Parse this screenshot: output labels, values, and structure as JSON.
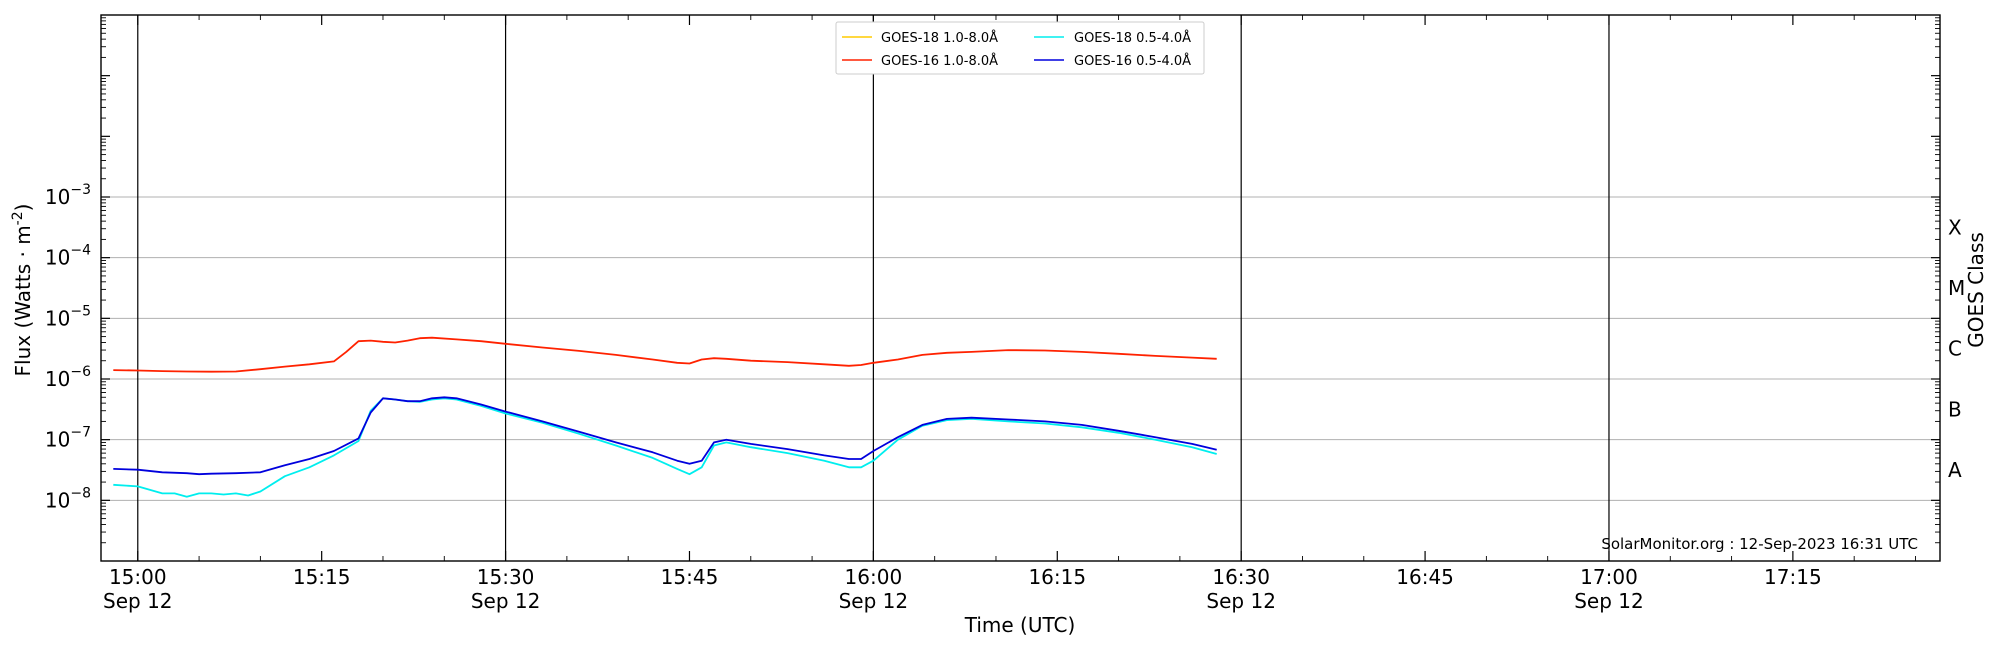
{
  "chart_data": {
    "type": "line",
    "xlabel": "Time (UTC)",
    "ylabel": "Flux (Watts · m",
    "ylabel_sup": "-2",
    "ylabel_close": ")",
    "right_axis_label": "GOES Class",
    "credit": "SolarMonitor.org : 12-Sep-2023 16:31 UTC",
    "x_range_minutes": [
      -3,
      147
    ],
    "y_log_range": [
      -9,
      0
    ],
    "y_scale": "log",
    "grid": "horizontal at decades",
    "legend_position": "top-center",
    "x_ticks": [
      {
        "t": 0,
        "label": "15:00",
        "date": "Sep 12",
        "major": true
      },
      {
        "t": 15,
        "label": "15:15",
        "date": "",
        "major": false
      },
      {
        "t": 30,
        "label": "15:30",
        "date": "Sep 12",
        "major": true
      },
      {
        "t": 45,
        "label": "15:45",
        "date": "",
        "major": false
      },
      {
        "t": 60,
        "label": "16:00",
        "date": "Sep 12",
        "major": true
      },
      {
        "t": 75,
        "label": "16:15",
        "date": "",
        "major": false
      },
      {
        "t": 90,
        "label": "16:30",
        "date": "Sep 12",
        "major": true
      },
      {
        "t": 105,
        "label": "16:45",
        "date": "",
        "major": false
      },
      {
        "t": 120,
        "label": "17:00",
        "date": "Sep 12",
        "major": true
      },
      {
        "t": 135,
        "label": "17:15",
        "date": "",
        "major": false
      }
    ],
    "y_ticks": [
      {
        "exp": -8,
        "base": "10",
        "sup": "−8"
      },
      {
        "exp": -7,
        "base": "10",
        "sup": "−7"
      },
      {
        "exp": -6,
        "base": "10",
        "sup": "−6"
      },
      {
        "exp": -5,
        "base": "10",
        "sup": "−5"
      },
      {
        "exp": -4,
        "base": "10",
        "sup": "−4"
      },
      {
        "exp": -3,
        "base": "10",
        "sup": "−3"
      }
    ],
    "goes_classes": [
      {
        "label": "A",
        "exp": -7.5
      },
      {
        "label": "B",
        "exp": -6.5
      },
      {
        "label": "C",
        "exp": -5.5
      },
      {
        "label": "M",
        "exp": -4.5
      },
      {
        "label": "X",
        "exp": -3.5
      }
    ],
    "x_unit": "minutes after 15:00 UTC",
    "series": [
      {
        "name": "GOES-18 1.0-8.0Å",
        "color": "#ffcc00",
        "points": []
      },
      {
        "name": "GOES-16 1.0-8.0Å",
        "color": "#ff2200",
        "points": [
          [
            -2,
            1.4e-06
          ],
          [
            0,
            1.38e-06
          ],
          [
            2,
            1.35e-06
          ],
          [
            4,
            1.33e-06
          ],
          [
            6,
            1.32e-06
          ],
          [
            8,
            1.33e-06
          ],
          [
            10,
            1.45e-06
          ],
          [
            12,
            1.6e-06
          ],
          [
            14,
            1.75e-06
          ],
          [
            16,
            1.95e-06
          ],
          [
            17,
            2.8e-06
          ],
          [
            18,
            4.2e-06
          ],
          [
            19,
            4.3e-06
          ],
          [
            20,
            4.1e-06
          ],
          [
            21,
            4e-06
          ],
          [
            22,
            4.3e-06
          ],
          [
            23,
            4.7e-06
          ],
          [
            24,
            4.8e-06
          ],
          [
            26,
            4.5e-06
          ],
          [
            28,
            4.2e-06
          ],
          [
            30,
            3.8e-06
          ],
          [
            33,
            3.3e-06
          ],
          [
            36,
            2.9e-06
          ],
          [
            39,
            2.5e-06
          ],
          [
            42,
            2.1e-06
          ],
          [
            44,
            1.85e-06
          ],
          [
            45,
            1.8e-06
          ],
          [
            46,
            2.1e-06
          ],
          [
            47,
            2.2e-06
          ],
          [
            48,
            2.15e-06
          ],
          [
            50,
            2e-06
          ],
          [
            53,
            1.9e-06
          ],
          [
            56,
            1.75e-06
          ],
          [
            58,
            1.65e-06
          ],
          [
            59,
            1.7e-06
          ],
          [
            60,
            1.85e-06
          ],
          [
            62,
            2.1e-06
          ],
          [
            64,
            2.5e-06
          ],
          [
            66,
            2.7e-06
          ],
          [
            68,
            2.8e-06
          ],
          [
            71,
            3e-06
          ],
          [
            74,
            2.95e-06
          ],
          [
            77,
            2.8e-06
          ],
          [
            80,
            2.6e-06
          ],
          [
            83,
            2.4e-06
          ],
          [
            86,
            2.25e-06
          ],
          [
            88,
            2.15e-06
          ]
        ]
      },
      {
        "name": "GOES-18 0.5-4.0Å",
        "color": "#00eeee",
        "points": [
          [
            -2,
            1.8e-08
          ],
          [
            0,
            1.7e-08
          ],
          [
            2,
            1.3e-08
          ],
          [
            3,
            1.3e-08
          ],
          [
            4,
            1.15e-08
          ],
          [
            5,
            1.3e-08
          ],
          [
            6,
            1.3e-08
          ],
          [
            7,
            1.25e-08
          ],
          [
            8,
            1.3e-08
          ],
          [
            9,
            1.2e-08
          ],
          [
            10,
            1.4e-08
          ],
          [
            12,
            2.5e-08
          ],
          [
            14,
            3.5e-08
          ],
          [
            16,
            5.5e-08
          ],
          [
            18,
            9.5e-08
          ],
          [
            19,
            3e-07
          ],
          [
            20,
            4.8e-07
          ],
          [
            21,
            4.6e-07
          ],
          [
            22,
            4.3e-07
          ],
          [
            23,
            4.2e-07
          ],
          [
            24,
            4.6e-07
          ],
          [
            25,
            4.8e-07
          ],
          [
            26,
            4.6e-07
          ],
          [
            28,
            3.6e-07
          ],
          [
            30,
            2.7e-07
          ],
          [
            33,
            1.9e-07
          ],
          [
            36,
            1.25e-07
          ],
          [
            39,
            8e-08
          ],
          [
            42,
            5e-08
          ],
          [
            44,
            3.3e-08
          ],
          [
            45,
            2.7e-08
          ],
          [
            46,
            3.5e-08
          ],
          [
            47,
            8e-08
          ],
          [
            48,
            9e-08
          ],
          [
            50,
            7.5e-08
          ],
          [
            53,
            6e-08
          ],
          [
            56,
            4.5e-08
          ],
          [
            58,
            3.5e-08
          ],
          [
            59,
            3.5e-08
          ],
          [
            60,
            4.5e-08
          ],
          [
            62,
            1e-07
          ],
          [
            64,
            1.7e-07
          ],
          [
            66,
            2.1e-07
          ],
          [
            68,
            2.2e-07
          ],
          [
            71,
            2e-07
          ],
          [
            74,
            1.85e-07
          ],
          [
            77,
            1.6e-07
          ],
          [
            80,
            1.3e-07
          ],
          [
            83,
            1e-07
          ],
          [
            86,
            7.5e-08
          ],
          [
            88,
            5.8e-08
          ]
        ]
      },
      {
        "name": "GOES-16 0.5-4.0Å",
        "color": "#0000dd",
        "points": [
          [
            -2,
            3.3e-08
          ],
          [
            0,
            3.2e-08
          ],
          [
            2,
            2.9e-08
          ],
          [
            4,
            2.8e-08
          ],
          [
            5,
            2.7e-08
          ],
          [
            6,
            2.75e-08
          ],
          [
            8,
            2.8e-08
          ],
          [
            10,
            2.9e-08
          ],
          [
            12,
            3.8e-08
          ],
          [
            14,
            4.8e-08
          ],
          [
            16,
            6.5e-08
          ],
          [
            18,
            1.05e-07
          ],
          [
            19,
            2.8e-07
          ],
          [
            20,
            4.8e-07
          ],
          [
            21,
            4.6e-07
          ],
          [
            22,
            4.3e-07
          ],
          [
            23,
            4.3e-07
          ],
          [
            24,
            4.8e-07
          ],
          [
            25,
            5e-07
          ],
          [
            26,
            4.8e-07
          ],
          [
            28,
            3.8e-07
          ],
          [
            30,
            2.9e-07
          ],
          [
            33,
            2e-07
          ],
          [
            36,
            1.35e-07
          ],
          [
            39,
            9e-08
          ],
          [
            42,
            6.2e-08
          ],
          [
            44,
            4.5e-08
          ],
          [
            45,
            4e-08
          ],
          [
            46,
            4.5e-08
          ],
          [
            47,
            9e-08
          ],
          [
            48,
            1e-07
          ],
          [
            50,
            8.5e-08
          ],
          [
            53,
            7e-08
          ],
          [
            56,
            5.5e-08
          ],
          [
            58,
            4.8e-08
          ],
          [
            59,
            4.8e-08
          ],
          [
            60,
            6.5e-08
          ],
          [
            62,
            1.1e-07
          ],
          [
            64,
            1.75e-07
          ],
          [
            66,
            2.2e-07
          ],
          [
            68,
            2.3e-07
          ],
          [
            71,
            2.15e-07
          ],
          [
            74,
            2e-07
          ],
          [
            77,
            1.75e-07
          ],
          [
            80,
            1.4e-07
          ],
          [
            83,
            1.1e-07
          ],
          [
            86,
            8.5e-08
          ],
          [
            88,
            6.8e-08
          ]
        ]
      }
    ]
  }
}
